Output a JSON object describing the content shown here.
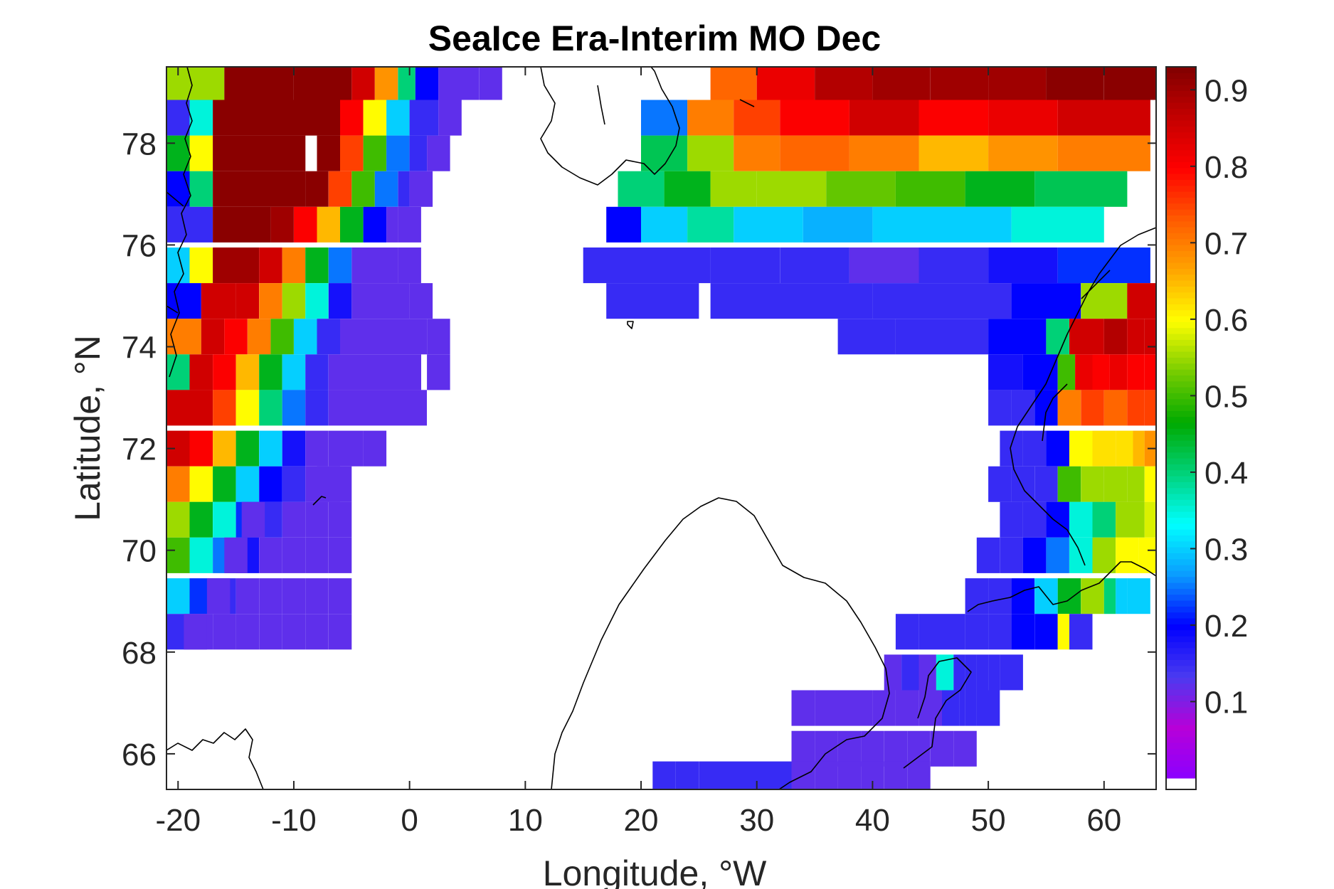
{
  "chart_data": {
    "type": "heatmap",
    "title": "SeaIce Era-Interim MO Dec",
    "xlabel": "Longitude, °W",
    "ylabel": "Latitude, °N",
    "xlim": [
      -21,
      64.5
    ],
    "ylim": [
      65.3,
      79.5
    ],
    "xticks": [
      -20,
      -10,
      0,
      10,
      20,
      30,
      40,
      50,
      60
    ],
    "yticks": [
      66,
      68,
      70,
      72,
      74,
      76,
      78
    ],
    "colorbar": {
      "min": 0.0,
      "max": 0.93,
      "ticks": [
        0.1,
        0.2,
        0.3,
        0.4,
        0.5,
        0.6,
        0.7,
        0.8,
        0.9
      ],
      "colormap": [
        "#8b00ff",
        "#b700d8",
        "#4a3af0",
        "#0000ff",
        "#0a9bff",
        "#00ffff",
        "#00d27a",
        "#00aa00",
        "#77cc00",
        "#ffff00",
        "#ffa500",
        "#ff5a00",
        "#ff0000",
        "#c40000",
        "#800000"
      ],
      "below_min_color": "#ffffff"
    },
    "cells": [
      {
        "lat": 79.2,
        "lon": [
          -21,
          -16,
          -10,
          -5,
          -3,
          -1,
          0.5,
          2.5,
          6
        ],
        "values": [
          0.55,
          0.92,
          0.92,
          0.85,
          0.68,
          0.4,
          0.2,
          0.12,
          0.12
        ]
      },
      {
        "lat": 78.5,
        "lon": [
          -21,
          -19,
          -17,
          -10,
          -6,
          -4,
          -2,
          0,
          2.5
        ],
        "values": [
          0.15,
          0.35,
          0.92,
          0.92,
          0.8,
          0.6,
          0.3,
          0.15,
          0.12
        ]
      },
      {
        "lat": 77.8,
        "lon": [
          -21,
          -19,
          -17,
          -8,
          -6,
          -4,
          -2,
          0,
          1.5
        ],
        "values": [
          0.45,
          0.6,
          0.92,
          0.92,
          0.75,
          0.5,
          0.25,
          0.15,
          0.12
        ]
      },
      {
        "lat": 77.1,
        "lon": [
          -21,
          -19,
          -17,
          -9,
          -7,
          -5,
          -3,
          -1,
          0
        ],
        "values": [
          0.2,
          0.4,
          0.92,
          0.92,
          0.75,
          0.5,
          0.25,
          0.15,
          0.12
        ]
      },
      {
        "lat": 76.4,
        "lon": [
          -21,
          -17,
          -12,
          -10,
          -8,
          -6,
          -4,
          -2,
          -1
        ],
        "values": [
          0.15,
          0.92,
          0.9,
          0.8,
          0.65,
          0.45,
          0.2,
          0.12,
          0.12
        ]
      },
      {
        "lat": 75.6,
        "lon": [
          -21,
          -19,
          -17,
          -13,
          -11,
          -9,
          -7,
          -5,
          -1
        ],
        "values": [
          0.3,
          0.6,
          0.9,
          0.85,
          0.7,
          0.45,
          0.25,
          0.12,
          0.12
        ]
      },
      {
        "lat": 74.9,
        "lon": [
          -21,
          -18,
          -15,
          -13,
          -11,
          -9,
          -7,
          -5,
          0
        ],
        "values": [
          0.2,
          0.85,
          0.85,
          0.7,
          0.55,
          0.35,
          0.18,
          0.12,
          0.12
        ]
      },
      {
        "lat": 74.2,
        "lon": [
          -21,
          -18,
          -16,
          -14,
          -12,
          -10,
          -8,
          -6,
          1.5
        ],
        "values": [
          0.7,
          0.85,
          0.8,
          0.7,
          0.5,
          0.3,
          0.15,
          0.12,
          0.12
        ]
      },
      {
        "lat": 73.5,
        "lon": [
          -21,
          -19,
          -17,
          -15,
          -13,
          -11,
          -9,
          -7,
          1.5
        ],
        "values": [
          0.4,
          0.85,
          0.8,
          0.65,
          0.45,
          0.3,
          0.15,
          0.12,
          0.12
        ]
      },
      {
        "lat": 72.8,
        "lon": [
          -21,
          -19,
          -17,
          -15,
          -13,
          -11,
          -9,
          -7,
          -0.5
        ],
        "values": [
          0.85,
          0.85,
          0.75,
          0.6,
          0.4,
          0.25,
          0.15,
          0.12,
          0.12
        ]
      },
      {
        "lat": 72.0,
        "lon": [
          -21,
          -19,
          -17,
          -15,
          -13,
          -11,
          -9,
          -7,
          -4
        ],
        "values": [
          0.85,
          0.8,
          0.65,
          0.45,
          0.3,
          0.18,
          0.12,
          0.12,
          0.12
        ]
      },
      {
        "lat": 71.3,
        "lon": [
          -21,
          -19,
          -17,
          -15,
          -13,
          -11,
          -9,
          -7,
          -8
        ],
        "values": [
          0.7,
          0.6,
          0.45,
          0.3,
          0.2,
          0.15,
          0.12,
          0.12,
          0.12
        ]
      },
      {
        "lat": 70.6,
        "lon": [
          -21,
          -19,
          -17,
          -15,
          -13,
          -11,
          -9,
          -7,
          -14.5
        ],
        "values": [
          0.55,
          0.45,
          0.35,
          0.22,
          0.15,
          0.12,
          0.12,
          0.12,
          0.12
        ]
      },
      {
        "lat": 69.9,
        "lon": [
          -21,
          -19,
          -17,
          -15,
          -13,
          -11,
          -9,
          -7,
          -16
        ],
        "values": [
          0.5,
          0.35,
          0.25,
          0.18,
          0.12,
          0.12,
          0.12,
          0.12,
          0.12
        ]
      },
      {
        "lat": 69.1,
        "lon": [
          -21,
          -19,
          -17,
          -15,
          -13,
          -11,
          -9,
          -7,
          -17.5
        ],
        "values": [
          0.3,
          0.22,
          0.15,
          0.12,
          0.12,
          0.12,
          0.12,
          0.12,
          0.12
        ]
      },
      {
        "lat": 68.4,
        "lon": [
          -21,
          -19,
          -17,
          -15,
          -13,
          -11,
          -9,
          -7,
          -19.5
        ],
        "values": [
          0.15,
          0.12,
          0.12,
          0.12,
          0.12,
          0.12,
          0.12,
          0.12,
          0.12
        ]
      },
      {
        "lat": 79.2,
        "lon": [
          26,
          30,
          35,
          40,
          45,
          50,
          55,
          60,
          64.5
        ],
        "values": [
          0.72,
          0.82,
          0.88,
          0.9,
          0.9,
          0.9,
          0.92,
          0.92,
          0.92
        ]
      },
      {
        "lat": 78.5,
        "lon": [
          20,
          24,
          28,
          32,
          38,
          44,
          50,
          56,
          64.5
        ],
        "values": [
          0.25,
          0.7,
          0.75,
          0.8,
          0.85,
          0.8,
          0.82,
          0.85,
          0.85
        ]
      },
      {
        "lat": 77.8,
        "lon": [
          20,
          24,
          28,
          32,
          38,
          44,
          50,
          56,
          64.5
        ],
        "values": [
          0.42,
          0.55,
          0.7,
          0.72,
          0.7,
          0.65,
          0.68,
          0.7,
          0.7
        ]
      },
      {
        "lat": 77.1,
        "lon": [
          18,
          22,
          26,
          30,
          36,
          42,
          48,
          54,
          64.5
        ],
        "values": [
          0.4,
          0.45,
          0.55,
          0.55,
          0.52,
          0.5,
          0.45,
          0.42,
          0.5
        ]
      },
      {
        "lat": 76.4,
        "lon": [
          17,
          20,
          24,
          28,
          34,
          40,
          46,
          52,
          64.5
        ],
        "values": [
          0.2,
          0.3,
          0.38,
          0.3,
          0.28,
          0.3,
          0.3,
          0.35,
          0.4
        ]
      },
      {
        "lat": 75.6,
        "lon": [
          15,
          20,
          26,
          32,
          38,
          44,
          50,
          56,
          64.5
        ],
        "values": [
          0.15,
          0.15,
          0.15,
          0.15,
          0.12,
          0.15,
          0.18,
          0.22,
          0.35
        ]
      },
      {
        "lat": 74.9,
        "lon": [
          17,
          26,
          33,
          40,
          46,
          52,
          58,
          62,
          64.5
        ],
        "values": [
          0.15,
          0.15,
          0.15,
          0.15,
          0.15,
          0.2,
          0.55,
          0.85,
          0.9
        ]
      },
      {
        "lat": 74.2,
        "lon": [
          37,
          42,
          50,
          55,
          57,
          60,
          62,
          63.5,
          64.5
        ],
        "values": [
          0.15,
          0.15,
          0.2,
          0.4,
          0.85,
          0.88,
          0.85,
          0.85,
          0.85
        ]
      },
      {
        "lat": 73.5,
        "lon": [
          50,
          53,
          56,
          57.5,
          59,
          60.5,
          62,
          63.5,
          64.5
        ],
        "values": [
          0.18,
          0.2,
          0.5,
          0.82,
          0.8,
          0.82,
          0.8,
          0.8,
          0.8
        ]
      },
      {
        "lat": 72.8,
        "lon": [
          50,
          52,
          54,
          56,
          58,
          60,
          62,
          63.5,
          64.5
        ],
        "values": [
          0.15,
          0.15,
          0.2,
          0.7,
          0.75,
          0.72,
          0.75,
          0.75,
          0.78
        ]
      },
      {
        "lat": 72.0,
        "lon": [
          51,
          53,
          55,
          57,
          59,
          61,
          62.5,
          63.5,
          64.5
        ],
        "values": [
          0.15,
          0.15,
          0.2,
          0.6,
          0.62,
          0.62,
          0.65,
          0.68,
          0.8
        ]
      },
      {
        "lat": 71.3,
        "lon": [
          50,
          52,
          54,
          56,
          58,
          60,
          62,
          63.5,
          64.5
        ],
        "values": [
          0.15,
          0.15,
          0.15,
          0.5,
          0.55,
          0.55,
          0.55,
          0.6,
          0.6
        ]
      },
      {
        "lat": 70.6,
        "lon": [
          51,
          53,
          55,
          57,
          59,
          61,
          62.5,
          63.5,
          64.5
        ],
        "values": [
          0.15,
          0.15,
          0.2,
          0.35,
          0.4,
          0.55,
          0.55,
          0.58,
          0.55
        ]
      },
      {
        "lat": 69.9,
        "lon": [
          49,
          51,
          53,
          55,
          57,
          59,
          61,
          63,
          64.5
        ],
        "values": [
          0.15,
          0.15,
          0.2,
          0.25,
          0.35,
          0.55,
          0.6,
          0.6,
          0.65
        ]
      },
      {
        "lat": 69.1,
        "lon": [
          48,
          50,
          52,
          54,
          56,
          58,
          60,
          61,
          62
        ],
        "values": [
          0.15,
          0.15,
          0.2,
          0.3,
          0.45,
          0.55,
          0.4,
          0.3,
          0.3
        ]
      },
      {
        "lat": 68.4,
        "lon": [
          42,
          44,
          46,
          48,
          50,
          52,
          54,
          56,
          57
        ],
        "values": [
          0.15,
          0.15,
          0.15,
          0.15,
          0.15,
          0.2,
          0.2,
          0.6,
          0.15
        ]
      },
      {
        "lat": 67.6,
        "lon": [
          41,
          42.5,
          44,
          45.5,
          47,
          48,
          49,
          50,
          51
        ],
        "values": [
          0.12,
          0.15,
          0.12,
          0.35,
          0.15,
          0.15,
          0.15,
          0.15,
          0.15
        ]
      },
      {
        "lat": 66.9,
        "lon": [
          33,
          35,
          40,
          42,
          44,
          46,
          47.5,
          48,
          49
        ],
        "values": [
          0.12,
          0.12,
          0.12,
          0.12,
          0.12,
          0.15,
          0.15,
          0.15,
          0.15
        ]
      },
      {
        "lat": 66.1,
        "lon": [
          33,
          35,
          37,
          39,
          41,
          43,
          45,
          46,
          47
        ],
        "values": [
          0.12,
          0.12,
          0.12,
          0.12,
          0.12,
          0.12,
          0.12,
          0.12,
          0.12
        ]
      },
      {
        "lat": 65.5,
        "lon": [
          21,
          23,
          25,
          33,
          35,
          37,
          39,
          41,
          43
        ],
        "values": [
          0.15,
          0.15,
          0.15,
          0.12,
          0.12,
          0.12,
          0.12,
          0.12,
          0.12
        ]
      }
    ]
  }
}
